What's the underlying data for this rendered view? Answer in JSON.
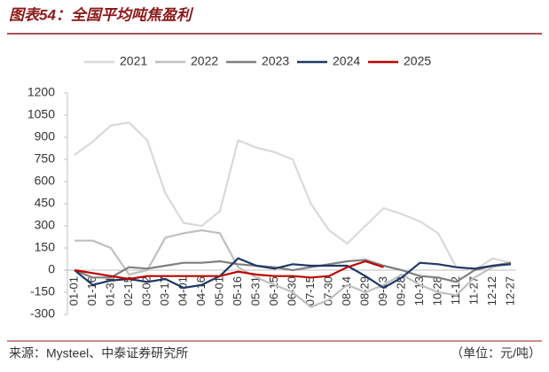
{
  "chart_data": {
    "type": "line",
    "title": "图表54：全国平均吨焦盈利",
    "source": "来源：Mysteel、中泰证券研究所",
    "unit": "（单位：元/吨）",
    "categories": [
      "01-01",
      "01-16",
      "01-31",
      "02-15",
      "03-02",
      "03-17",
      "04-01",
      "04-16",
      "05-01",
      "05-16",
      "05-31",
      "06-15",
      "06-30",
      "07-15",
      "07-30",
      "08-14",
      "08-29",
      "09-13",
      "09-28",
      "10-13",
      "10-28",
      "11-12",
      "11-27",
      "12-12",
      "12-27"
    ],
    "series": [
      {
        "name": "2021",
        "color": "#d9d9d9",
        "values": [
          780,
          870,
          980,
          1000,
          880,
          520,
          320,
          300,
          400,
          880,
          830,
          800,
          750,
          450,
          270,
          180,
          300,
          420,
          380,
          330,
          250,
          20,
          0,
          80,
          50
        ]
      },
      {
        "name": "2022",
        "color": "#bfbfbf",
        "values": [
          200,
          200,
          150,
          -30,
          0,
          220,
          250,
          270,
          250,
          20,
          -50,
          -100,
          -150,
          -250,
          -200,
          -100,
          -150,
          -100,
          -30,
          -100,
          -150,
          -170,
          -50,
          20,
          50
        ]
      },
      {
        "name": "2023",
        "color": "#7f7f7f",
        "values": [
          0,
          -50,
          -50,
          20,
          10,
          30,
          50,
          50,
          60,
          40,
          30,
          20,
          0,
          20,
          40,
          60,
          70,
          30,
          0,
          -40,
          -50,
          -80,
          0,
          30,
          50
        ]
      },
      {
        "name": "2024",
        "color": "#1f3864",
        "values": [
          0,
          -100,
          -70,
          -60,
          -80,
          -60,
          -120,
          -100,
          -40,
          80,
          30,
          10,
          40,
          30,
          30,
          30,
          -40,
          -120,
          -50,
          50,
          40,
          20,
          10,
          30,
          40
        ]
      },
      {
        "name": "2025",
        "color": "#c00000",
        "values": [
          0,
          -20,
          -40,
          -60,
          -40,
          -40,
          -40,
          -40,
          -40,
          -10,
          -30,
          -40,
          -40,
          -50,
          -40,
          20,
          60,
          20,
          null,
          null,
          null,
          null,
          null,
          null,
          null
        ]
      }
    ],
    "ylim": [
      -300,
      1200
    ],
    "yticks": [
      -300,
      -150,
      0,
      150,
      300,
      450,
      600,
      750,
      900,
      1050,
      1200
    ],
    "legend": "top"
  }
}
